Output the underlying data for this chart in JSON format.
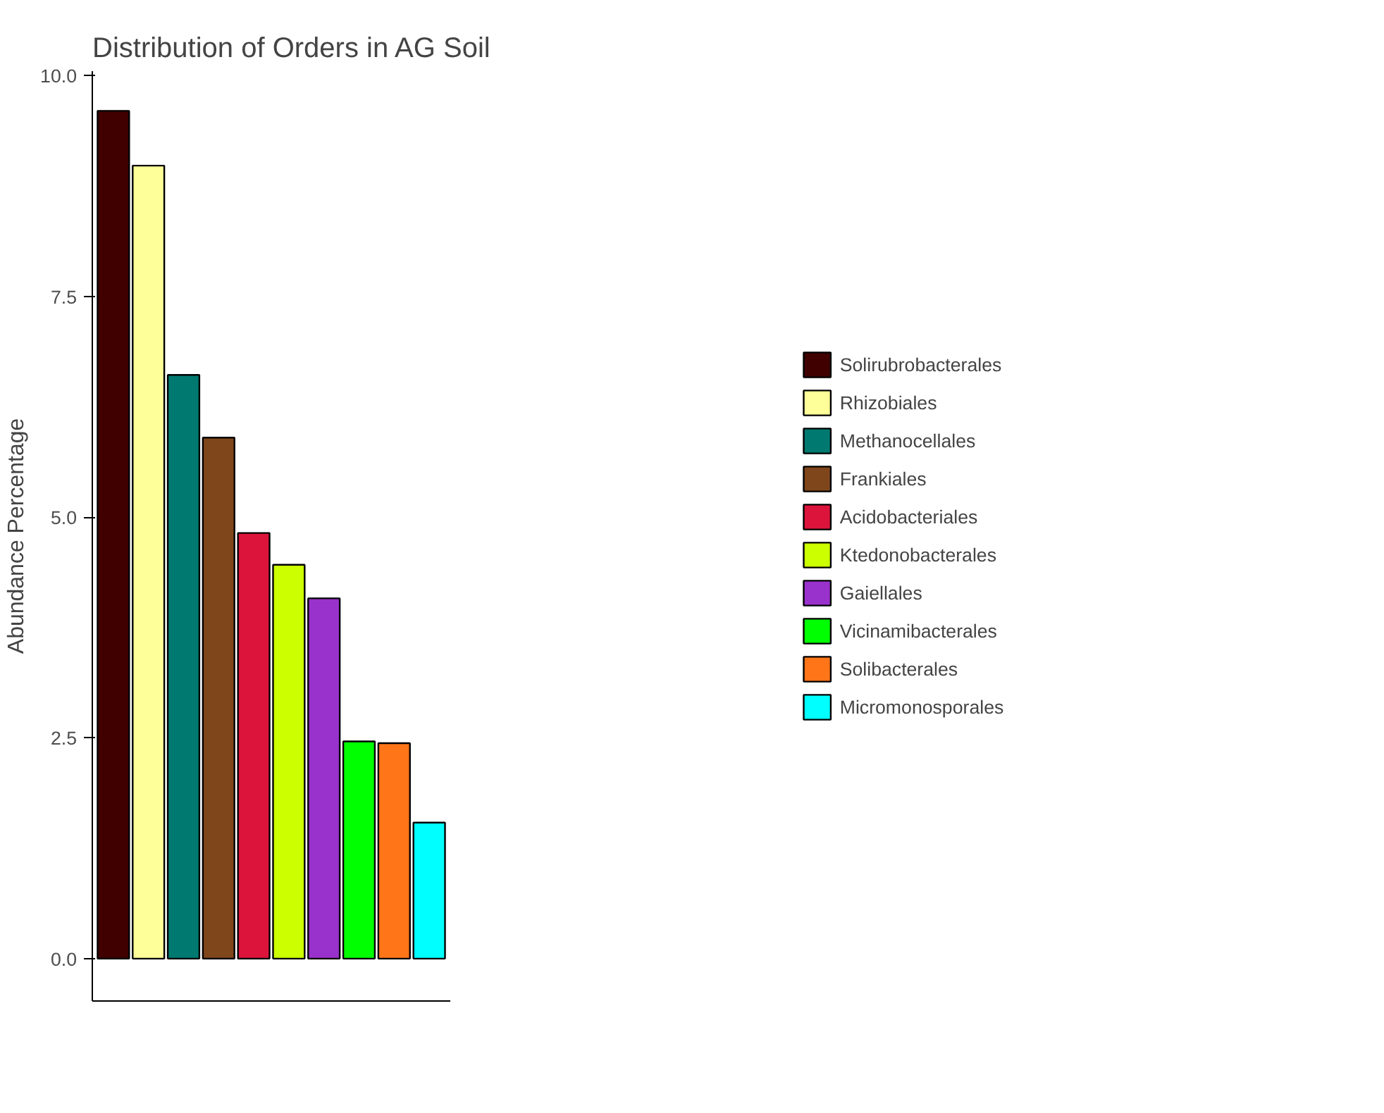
{
  "chart_data": {
    "type": "bar",
    "title": "Distribution of Orders in AG Soil",
    "ylabel": "Abundance Percentage",
    "categories": [
      null,
      null,
      null,
      null,
      null,
      null,
      null,
      null,
      null,
      null
    ],
    "series": [
      {
        "name": "Solirubrobacterales",
        "color": "#400000",
        "values": [
          9.6,
          null,
          null,
          null,
          null,
          null,
          null,
          null,
          null,
          null
        ]
      },
      {
        "name": "Rhizobiales",
        "color": "#ffff99",
        "values": [
          null,
          8.98,
          null,
          null,
          null,
          null,
          null,
          null,
          null,
          null
        ]
      },
      {
        "name": "Methanocellales",
        "color": "#007a70",
        "values": [
          null,
          null,
          6.61,
          null,
          null,
          null,
          null,
          null,
          null,
          null
        ]
      },
      {
        "name": "Frankiales",
        "color": "#80461b",
        "values": [
          null,
          null,
          null,
          5.9,
          null,
          null,
          null,
          null,
          null,
          null
        ]
      },
      {
        "name": "Acidobacteriales",
        "color": "#dc143c",
        "values": [
          null,
          null,
          null,
          null,
          4.82,
          null,
          null,
          null,
          null,
          null
        ]
      },
      {
        "name": "Ktedonobacterales",
        "color": "#ccff00",
        "values": [
          null,
          null,
          null,
          null,
          null,
          4.46,
          null,
          null,
          null,
          null
        ]
      },
      {
        "name": "Gaiellales",
        "color": "#9932cc",
        "values": [
          null,
          null,
          null,
          null,
          null,
          null,
          4.08,
          null,
          null,
          null
        ]
      },
      {
        "name": "Vicinamibacterales",
        "color": "#00ff00",
        "values": [
          null,
          null,
          null,
          null,
          null,
          null,
          null,
          2.46,
          null,
          null
        ]
      },
      {
        "name": "Solibacterales",
        "color": "#ff7518",
        "values": [
          null,
          null,
          null,
          null,
          null,
          null,
          null,
          null,
          2.44,
          null
        ]
      },
      {
        "name": "Micromonosporales",
        "color": "#00ffff",
        "values": [
          null,
          null,
          null,
          null,
          null,
          null,
          null,
          null,
          null,
          1.54
        ]
      }
    ],
    "ylim": [
      -0.48,
      10.05
    ],
    "yticks": [
      {
        "value": 0,
        "label": "0.0"
      },
      {
        "value": 2.5,
        "label": "2.5"
      },
      {
        "value": 5,
        "label": "5.0"
      },
      {
        "value": 7.5,
        "label": "7.5"
      },
      {
        "value": 10,
        "label": "10.0"
      }
    ],
    "grid": false,
    "legend": "right",
    "tick_labels": "y"
  }
}
